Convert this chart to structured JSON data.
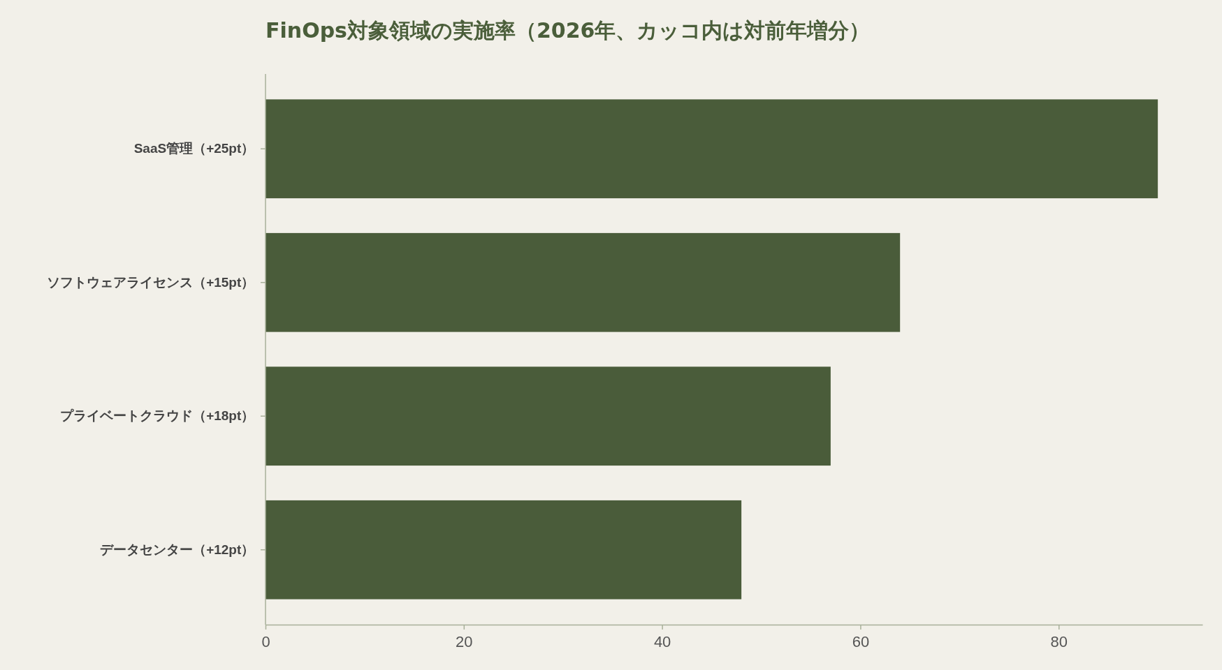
{
  "chart_data": {
    "type": "bar",
    "orientation": "horizontal",
    "title": "FinOps対象領域の実施率（2026年、カッコ内は対前年増分）",
    "categories": [
      "SaaS管理（+25pt）",
      "ソフトウェアライセンス（+15pt）",
      "プライベートクラウド（+18pt）",
      "データセンター（+12pt）"
    ],
    "values": [
      90,
      64,
      57,
      48
    ],
    "color": "#4a5c3a",
    "xlim": [
      0,
      94.5
    ],
    "xticks": [
      0,
      20,
      40,
      60,
      80
    ],
    "grid": false
  }
}
